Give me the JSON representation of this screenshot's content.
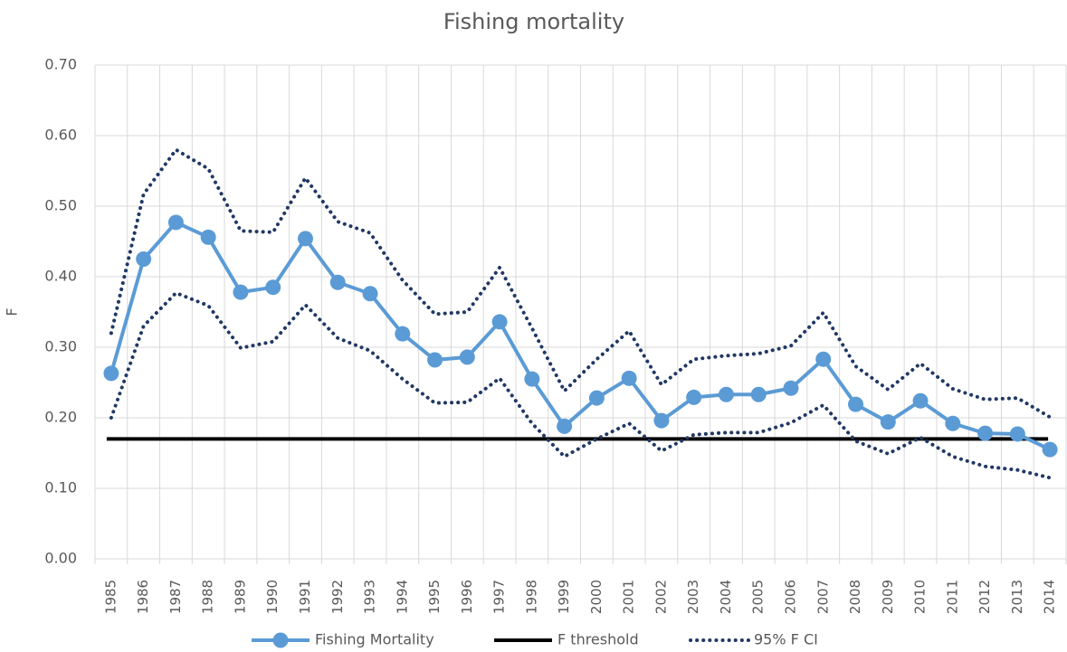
{
  "chart_data": {
    "type": "line",
    "title": "Fishing mortality",
    "y_label": "F",
    "categories": [
      "1985",
      "1986",
      "1987",
      "1988",
      "1989",
      "1990",
      "1991",
      "1992",
      "1993",
      "1994",
      "1995",
      "1996",
      "1997",
      "1998",
      "1999",
      "2000",
      "2001",
      "2002",
      "2003",
      "2004",
      "2005",
      "2006",
      "2007",
      "2008",
      "2009",
      "2010",
      "2011",
      "2012",
      "2013",
      "2014"
    ],
    "series": [
      {
        "name": "Fishing Mortality",
        "color": "#5b9bd5",
        "marker": "circle",
        "values": [
          0.263,
          0.425,
          0.477,
          0.456,
          0.378,
          0.385,
          0.454,
          0.392,
          0.376,
          0.319,
          0.282,
          0.286,
          0.336,
          0.255,
          0.188,
          0.228,
          0.256,
          0.196,
          0.229,
          0.233,
          0.233,
          0.242,
          0.283,
          0.219,
          0.194,
          0.224,
          0.192,
          0.178,
          0.177,
          0.155
        ]
      }
    ],
    "threshold": {
      "name": "F threshold",
      "color": "#000000",
      "value": 0.17
    },
    "interval": {
      "name": "95% F CI",
      "color": "#203864",
      "upper": [
        0.32,
        0.517,
        0.58,
        0.553,
        0.465,
        0.463,
        0.54,
        0.478,
        0.462,
        0.395,
        0.347,
        0.35,
        0.413,
        0.327,
        0.238,
        0.283,
        0.323,
        0.247,
        0.283,
        0.288,
        0.291,
        0.302,
        0.349,
        0.273,
        0.24,
        0.277,
        0.241,
        0.226,
        0.228,
        0.201
      ],
      "lower": [
        0.2,
        0.33,
        0.377,
        0.359,
        0.299,
        0.308,
        0.36,
        0.313,
        0.295,
        0.255,
        0.221,
        0.222,
        0.256,
        0.192,
        0.145,
        0.17,
        0.192,
        0.153,
        0.176,
        0.179,
        0.179,
        0.193,
        0.218,
        0.167,
        0.149,
        0.172,
        0.145,
        0.131,
        0.126,
        0.115
      ]
    },
    "ylim": [
      0,
      0.7
    ],
    "yticks": [
      {
        "value": 0,
        "label": "0.00"
      },
      {
        "value": 0.1,
        "label": "0.10"
      },
      {
        "value": 0.2,
        "label": "0.20"
      },
      {
        "value": 0.3,
        "label": "0.30"
      },
      {
        "value": 0.4,
        "label": "0.40"
      },
      {
        "value": 0.5,
        "label": "0.50"
      },
      {
        "value": 0.6,
        "label": "0.60"
      },
      {
        "value": 0.7,
        "label": "0.70"
      }
    ],
    "grid": true,
    "legend": "bottom"
  }
}
